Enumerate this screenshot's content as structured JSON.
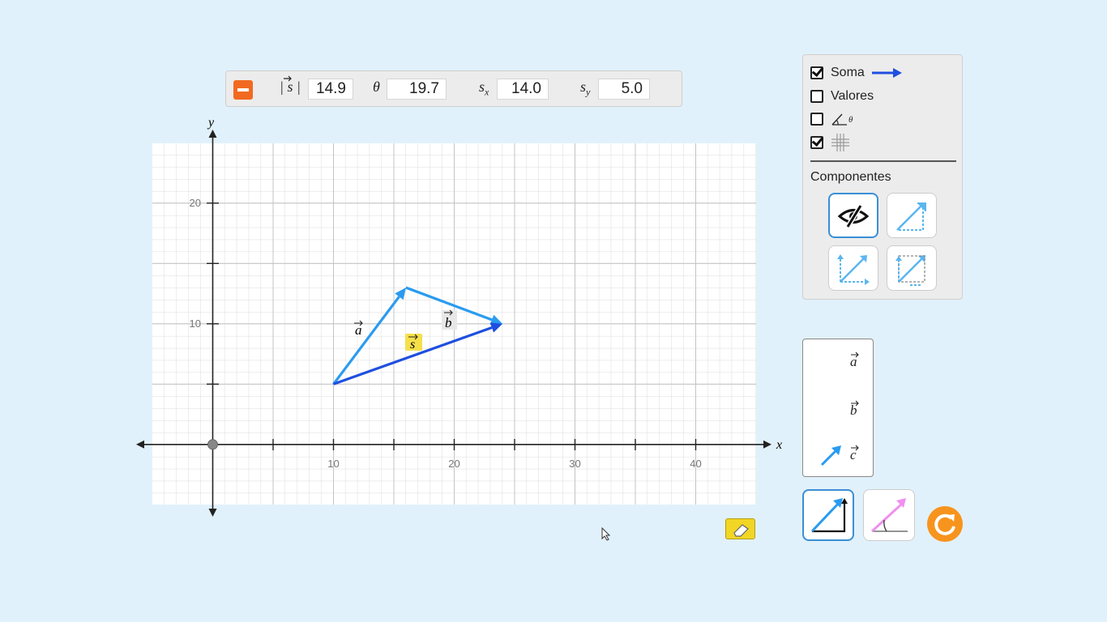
{
  "readout": {
    "magnitude_label": "|s|",
    "magnitude_value": "14.9",
    "theta_label": "θ",
    "theta_value": "19.7",
    "sx_label": "s",
    "sx_sub": "x",
    "sx_value": "14.0",
    "sy_label": "s",
    "sy_sub": "y",
    "sy_value": "5.0"
  },
  "graph": {
    "x_axis_label": "x",
    "y_axis_label": "y",
    "x_ticks": [
      "10",
      "20",
      "30",
      "40"
    ],
    "y_ticks": [
      "10",
      "20"
    ],
    "vectors": [
      {
        "name": "a",
        "tail": [
          10,
          5
        ],
        "tip": [
          16,
          13
        ],
        "color": "#2a9bf0"
      },
      {
        "name": "b",
        "tail": [
          16,
          13
        ],
        "tip": [
          24,
          10
        ],
        "color": "#2a9bf0"
      },
      {
        "name": "s",
        "tail": [
          10,
          5
        ],
        "tip": [
          24,
          10
        ],
        "color": "#1f4fe0"
      }
    ],
    "labels": {
      "a": "a",
      "b": "b",
      "s": "s"
    }
  },
  "controls": {
    "soma_label": "Soma",
    "soma_checked": true,
    "valores_label": "Valores",
    "valores_checked": false,
    "angle_checked": false,
    "angle_theta": "θ",
    "grid_checked": true,
    "componentes_title": "Componentes"
  },
  "vector_list": {
    "items": [
      "a",
      "b",
      "c"
    ]
  },
  "colors": {
    "accent_orange": "#f26a21",
    "vector_blue": "#2a9bf0",
    "sum_blue": "#1f4fe0",
    "eraser_yellow": "#f2d625",
    "reset_orange": "#f7941d"
  }
}
